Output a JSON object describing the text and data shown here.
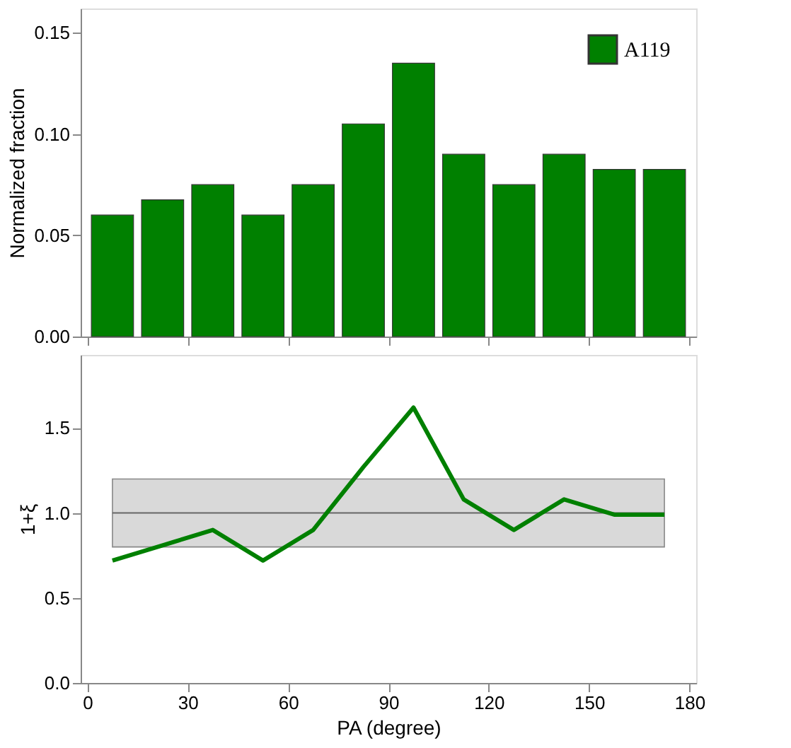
{
  "chart_data": [
    {
      "type": "bar",
      "ylabel": "Normalized fraction",
      "x": [
        7.5,
        22.5,
        37.5,
        52.5,
        67.5,
        82.5,
        97.5,
        112.5,
        127.5,
        142.5,
        157.5,
        172.5
      ],
      "series": [
        {
          "name": "A119",
          "color": "#008000",
          "values": [
            0.06,
            0.0675,
            0.075,
            0.06,
            0.075,
            0.105,
            0.135,
            0.09,
            0.075,
            0.09,
            0.0825,
            0.0825
          ]
        }
      ],
      "xlim": [
        -2,
        182
      ],
      "xticks": [
        0,
        30,
        60,
        90,
        120,
        150,
        180
      ],
      "ylim": [
        0,
        0.162
      ],
      "yticks": [
        {
          "value": 0,
          "label": "0.00"
        },
        {
          "value": 0.05,
          "label": "0.05"
        },
        {
          "value": 0.1,
          "label": "0.10"
        },
        {
          "value": 0.15,
          "label": "0.15"
        }
      ],
      "tick_labels": "y",
      "legend": "top right",
      "grid": false
    },
    {
      "type": "line",
      "xlabel": "PA (degree)",
      "ylabel": "1+ξ",
      "x": [
        7.5,
        22.5,
        37.5,
        52.5,
        67.5,
        82.5,
        97.5,
        112.5,
        127.5,
        142.5,
        157.5,
        172.5
      ],
      "series": [
        {
          "color": "#008000",
          "values": [
            0.72,
            0.81,
            0.9,
            0.72,
            0.9,
            1.27,
            1.62,
            1.08,
            0.9,
            1.08,
            0.99,
            0.99
          ]
        }
      ],
      "xlim": [
        -2,
        182
      ],
      "xticks": [
        0,
        30,
        60,
        90,
        120,
        150,
        180
      ],
      "ylim": [
        0,
        1.93
      ],
      "yticks": [
        {
          "value": 0,
          "label": "0.0"
        },
        {
          "value": 0.5,
          "label": "0.5"
        },
        {
          "value": 1,
          "label": "1.0"
        },
        {
          "value": 1.5,
          "label": "1.5"
        }
      ],
      "ref_lines": [
        {
          "axis": "y",
          "value": 1,
          "color": "#666666"
        }
      ],
      "bands": [
        {
          "axis": "y",
          "from": 0.8,
          "to": 1.2,
          "color": "#d9d9d9"
        }
      ],
      "grid": false,
      "marker": "none",
      "line_style": "solid"
    }
  ]
}
